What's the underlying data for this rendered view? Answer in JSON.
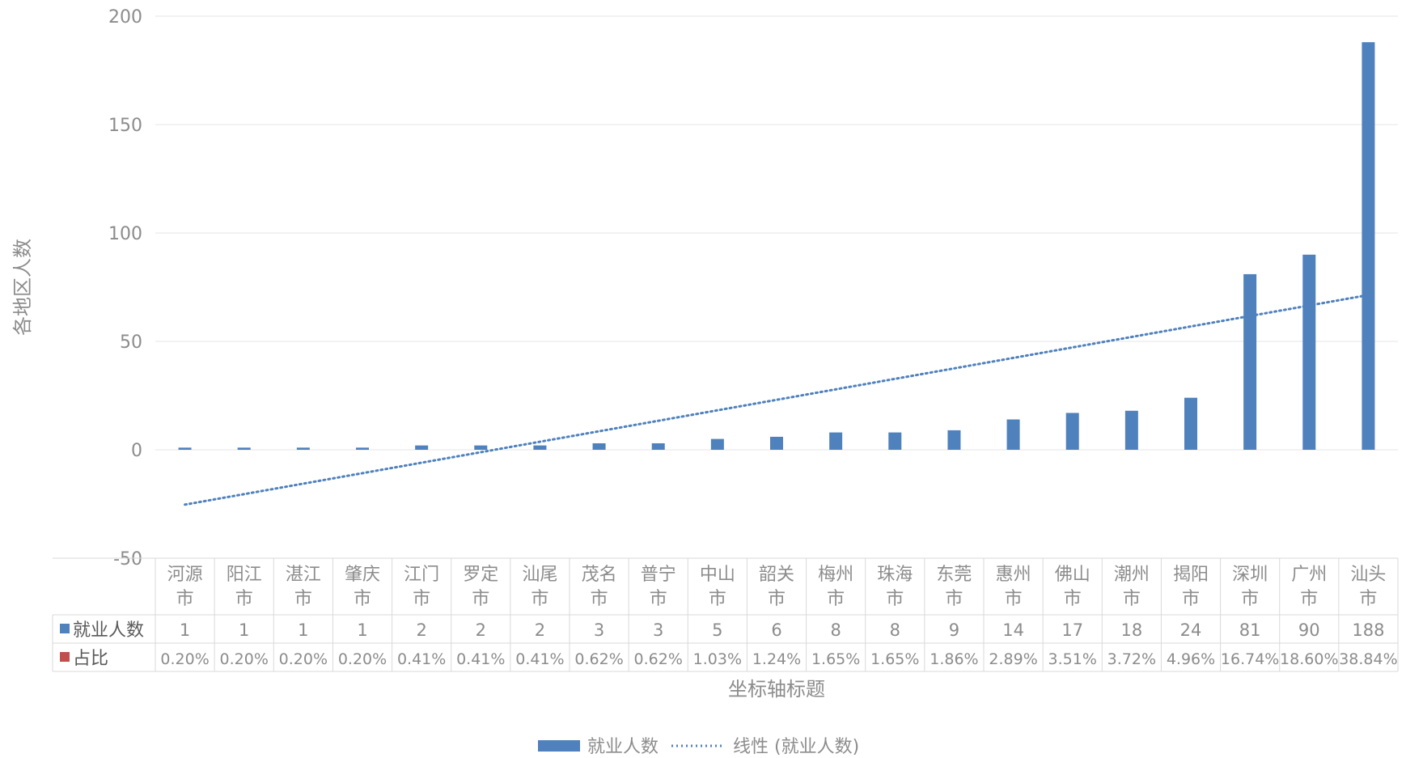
{
  "chart_data": {
    "type": "bar",
    "categories": [
      [
        "河源",
        "市"
      ],
      [
        "阳江",
        "市"
      ],
      [
        "湛江",
        "市"
      ],
      [
        "肇庆",
        "市"
      ],
      [
        "江门",
        "市"
      ],
      [
        "罗定",
        "市"
      ],
      [
        "汕尾",
        "市"
      ],
      [
        "茂名",
        "市"
      ],
      [
        "普宁",
        "市"
      ],
      [
        "中山",
        "市"
      ],
      [
        "韶关",
        "市"
      ],
      [
        "梅州",
        "市"
      ],
      [
        "珠海",
        "市"
      ],
      [
        "东莞",
        "市"
      ],
      [
        "惠州",
        "市"
      ],
      [
        "佛山",
        "市"
      ],
      [
        "潮州",
        "市"
      ],
      [
        "揭阳",
        "市"
      ],
      [
        "深圳",
        "市"
      ],
      [
        "广州",
        "市"
      ],
      [
        "汕头",
        "市"
      ]
    ],
    "series": [
      {
        "name": "就业人数",
        "color": "#4f81bd",
        "values": [
          1,
          1,
          1,
          1,
          2,
          2,
          2,
          3,
          3,
          5,
          6,
          8,
          8,
          9,
          14,
          17,
          18,
          24,
          81,
          90,
          188
        ],
        "labels": [
          "1",
          "1",
          "1",
          "1",
          "2",
          "2",
          "2",
          "3",
          "3",
          "5",
          "6",
          "8",
          "8",
          "9",
          "14",
          "17",
          "18",
          "24",
          "81",
          "90",
          "188"
        ]
      },
      {
        "name": "占比",
        "color": "#c0504d",
        "labels": [
          "0.20%",
          "0.20%",
          "0.20%",
          "0.20%",
          "0.41%",
          "0.41%",
          "0.41%",
          "0.62%",
          "0.62%",
          "1.03%",
          "1.24%",
          "1.65%",
          "1.65%",
          "1.86%",
          "2.89%",
          "3.51%",
          "3.72%",
          "4.96%",
          "16.74%",
          "18.60%",
          "38.84%"
        ]
      }
    ],
    "trendline": {
      "name": "线性 (就业人数)",
      "type": "linear",
      "series": "就业人数",
      "color": "#4f81bd",
      "style": "dotted"
    },
    "ylabel": "各地区人数",
    "xlabel": "坐标轴标题",
    "ylim": [
      -50,
      200
    ],
    "yticks": [
      -50,
      0,
      50,
      100,
      150,
      200
    ],
    "grid": true,
    "legend_position": "bottom",
    "data_table": true
  }
}
